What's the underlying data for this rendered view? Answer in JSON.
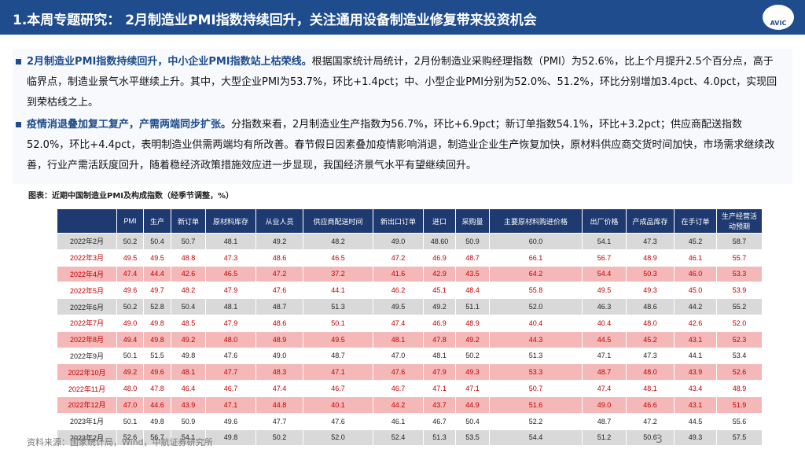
{
  "header": {
    "title": "1.本周专题研究： 2月制造业PMI指数持续回升，关注通用设备制造业修复带来投资机会",
    "logo": "AVIC"
  },
  "bullets": [
    {
      "lead": "2月制造业PMI指数持续回升，中小企业PMI指数站上枯荣线。",
      "text": "根据国家统计局统计，2月份制造业采购经理指数（PMI）为52.6%，比上个月提升2.5个百分点，高于临界点，制造业景气水平继续上升。其中，大型企业PMI为53.7%，环比+1.4pct；中、小型企业PMI分别为52.0%、51.2%，环比分别增加3.4pct、4.0pct，实现回到荣枯线之上。"
    },
    {
      "lead": "疫情消退叠加复工复产，产需两端同步扩张。",
      "text": "分指数来看，2月制造业生产指数为56.7%，环比+6.9pct；新订单指数54.1%，环比+3.2pct；供应商配送指数52.0%，环比+4.4pct，表明制造业供需两端均有所改善。春节假日因素叠加疫情影响消退，制造业企业生产恢复加快，原材料供应商交货时间加快，市场需求继续改善，行业产需活跃度回升，随着稳经济政策措施效应进一步显现，我国经济景气水平有望继续回升。"
    }
  ],
  "table": {
    "caption": "图表：近期中国制造业PMI及构成指数（经季节调整，%）",
    "columns": [
      "PMI",
      "生产",
      "新订单",
      "原材料库存",
      "从业人员",
      "供应商配送时间",
      "新出口订单",
      "进口",
      "采购量",
      "主要原材料购进价格",
      "出厂价格",
      "产成品库存",
      "在手订单",
      "生产经营活动预期"
    ],
    "rows": [
      [
        "2022年2月",
        "50.2",
        "50.4",
        "50.7",
        "48.1",
        "49.2",
        "48.2",
        "49.0",
        "48.60",
        "50.9",
        "60.0",
        "54.1",
        "47.3",
        "45.2",
        "58.7"
      ],
      [
        "2022年3月",
        "49.5",
        "49.5",
        "48.8",
        "47.3",
        "48.6",
        "46.5",
        "47.2",
        "46.9",
        "48.7",
        "66.1",
        "56.7",
        "48.9",
        "46.1",
        "55.7"
      ],
      [
        "2022年4月",
        "47.4",
        "44.4",
        "42.6",
        "46.5",
        "47.2",
        "37.2",
        "41.6",
        "42.9",
        "43.5",
        "64.2",
        "54.4",
        "50.3",
        "46.0",
        "53.3"
      ],
      [
        "2022年5月",
        "49.6",
        "49.7",
        "48.2",
        "47.9",
        "47.6",
        "44.1",
        "46.2",
        "45.1",
        "48.4",
        "55.8",
        "49.5",
        "49.3",
        "45.0",
        "53.9"
      ],
      [
        "2022年6月",
        "50.2",
        "52.8",
        "50.4",
        "48.1",
        "48.7",
        "51.3",
        "49.5",
        "49.2",
        "51.1",
        "52.0",
        "46.3",
        "48.6",
        "44.2",
        "55.2"
      ],
      [
        "2022年7月",
        "49.0",
        "49.8",
        "48.5",
        "47.9",
        "48.6",
        "50.1",
        "47.4",
        "46.9",
        "48.9",
        "40.4",
        "40.4",
        "48.0",
        "42.6",
        "52.0"
      ],
      [
        "2022年8月",
        "49.4",
        "49.8",
        "49.2",
        "48.0",
        "48.9",
        "49.5",
        "48.1",
        "47.8",
        "49.2",
        "44.3",
        "44.5",
        "45.2",
        "43.1",
        "52.3"
      ],
      [
        "2022年9月",
        "50.1",
        "51.5",
        "49.8",
        "47.6",
        "49.0",
        "48.7",
        "47.0",
        "48.1",
        "50.2",
        "51.3",
        "47.1",
        "47.3",
        "44.1",
        "53.4"
      ],
      [
        "2022年10月",
        "49.2",
        "49.6",
        "48.1",
        "47.7",
        "48.3",
        "47.1",
        "47.6",
        "47.9",
        "49.3",
        "53.3",
        "48.7",
        "48.0",
        "43.9",
        "52.6"
      ],
      [
        "2022年11月",
        "48.0",
        "47.8",
        "46.4",
        "46.7",
        "47.4",
        "46.7",
        "46.7",
        "47.1",
        "47.1",
        "50.7",
        "47.4",
        "48.1",
        "43.4",
        "48.9"
      ],
      [
        "2022年12月",
        "47.0",
        "44.6",
        "43.9",
        "47.1",
        "44.8",
        "40.1",
        "44.2",
        "43.7",
        "44.9",
        "51.6",
        "49.0",
        "46.6",
        "43.1",
        "51.9"
      ],
      [
        "2023年1月",
        "50.1",
        "49.8",
        "50.9",
        "49.6",
        "47.7",
        "47.6",
        "46.1",
        "46.7",
        "50.4",
        "52.2",
        "48.7",
        "47.2",
        "44.5",
        "55.6"
      ],
      [
        "2023年2月",
        "52.6",
        "56.7",
        "54.1",
        "49.8",
        "50.2",
        "52.0",
        "52.4",
        "51.3",
        "53.5",
        "54.4",
        "51.2",
        "50.6",
        "49.3",
        "57.5"
      ]
    ]
  },
  "footer": {
    "source": "资料来源：国家统计局，Wind，中航证券研究所",
    "page": "3"
  }
}
